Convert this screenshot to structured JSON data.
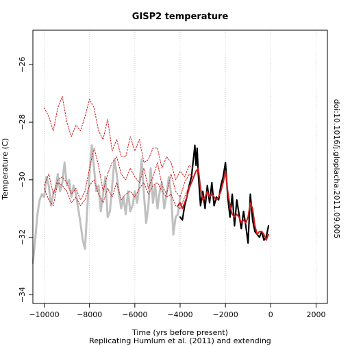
{
  "chart_data": {
    "type": "line",
    "title": "GISP2 temperature",
    "xlabel": "Time (yrs before present)",
    "ylabel": "Temperature (C)",
    "caption": "Replicating Humlum et al. (2011) and extending",
    "side_label": "doi:10.1016/j.gloplacha.2011.09.005",
    "xlim": [
      -10500,
      2500
    ],
    "ylim": [
      -34.3,
      -24.8
    ],
    "x_ticks": [
      -10000,
      -8000,
      -6000,
      -4000,
      -2000,
      0,
      2000
    ],
    "x_tick_labels": [
      "−10000",
      "−8000",
      "−6000",
      "−4000",
      "−2000",
      "0",
      "2000"
    ],
    "y_ticks": [
      -34,
      -32,
      -30,
      -28,
      -26
    ],
    "y_tick_labels": [
      "−34",
      "−32",
      "−30",
      "−28",
      "−26"
    ],
    "grid_x": true,
    "series": [
      {
        "color": "#c0c0c0",
        "style": "solid",
        "x": [
          -10500,
          -10400,
          -10300,
          -10200,
          -10100,
          -10000,
          -9900,
          -9800,
          -9700,
          -9600,
          -9500,
          -9400,
          -9300,
          -9200,
          -9100,
          -9000,
          -8900,
          -8800,
          -8700,
          -8600,
          -8500,
          -8400,
          -8300,
          -8200,
          -8100,
          -8000,
          -7900,
          -7800,
          -7700,
          -7600,
          -7500,
          -7400,
          -7300,
          -7200,
          -7100,
          -7000,
          -6900,
          -6800,
          -6700,
          -6600,
          -6500,
          -6400,
          -6300,
          -6200,
          -6100,
          -6000,
          -5900,
          -5800,
          -5700,
          -5600,
          -5500,
          -5400,
          -5300,
          -5200,
          -5100,
          -5000,
          -4900,
          -4800,
          -4700,
          -4600,
          -4500,
          -4400,
          -4300,
          -4200,
          -4100,
          -4000
        ],
        "y": [
          -32.9,
          -32.1,
          -31.2,
          -30.7,
          -30.5,
          -30.6,
          -29.9,
          -30.2,
          -30.9,
          -30.5,
          -30.3,
          -29.8,
          -30.4,
          -30.1,
          -29.4,
          -30.2,
          -30.0,
          -30.6,
          -30.2,
          -30.5,
          -31.0,
          -31.5,
          -32.1,
          -32.4,
          -31.0,
          -29.8,
          -28.8,
          -29.6,
          -30.4,
          -30.2,
          -31.1,
          -30.5,
          -29.9,
          -31.3,
          -31.1,
          -30.2,
          -29.3,
          -29.8,
          -30.5,
          -31.0,
          -30.6,
          -31.2,
          -30.4,
          -31.1,
          -30.9,
          -30.4,
          -30.8,
          -30.2,
          -29.3,
          -30.5,
          -31.5,
          -30.9,
          -29.6,
          -30.8,
          -30.2,
          -31.0,
          -30.4,
          -30.1,
          -31.0,
          -30.5,
          -29.9,
          -30.5,
          -31.9,
          -31.3,
          -31.2,
          -30.6
        ]
      },
      {
        "color": "#000000",
        "style": "solid",
        "x": [
          -4000,
          -3900,
          -3800,
          -3700,
          -3600,
          -3500,
          -3400,
          -3350,
          -3300,
          -3250,
          -3200,
          -3100,
          -3000,
          -2900,
          -2800,
          -2700,
          -2600,
          -2500,
          -2400,
          -2300,
          -2200,
          -2100,
          -2000,
          -1900,
          -1800,
          -1700,
          -1600,
          -1500,
          -1400,
          -1300,
          -1200,
          -1100,
          -1000,
          -900,
          -800,
          -700,
          -600,
          -500,
          -400,
          -300,
          -200,
          -100
        ],
        "y": [
          -31.3,
          -31.4,
          -30.9,
          -30.6,
          -30.2,
          -29.9,
          -29.2,
          -28.8,
          -29.5,
          -28.9,
          -29.8,
          -30.9,
          -30.4,
          -31.0,
          -30.2,
          -30.8,
          -30.1,
          -30.9,
          -30.6,
          -30.7,
          -30.2,
          -29.9,
          -29.4,
          -30.6,
          -31.3,
          -30.5,
          -31.6,
          -30.7,
          -31.2,
          -31.7,
          -31.1,
          -31.6,
          -32.2,
          -30.5,
          -31.4,
          -31.8,
          -31.9,
          -32.0,
          -31.8,
          -32.1,
          -32.0,
          -31.6
        ]
      },
      {
        "color": "#cc1f1f",
        "style": "solid",
        "x": [
          -4100,
          -4000,
          -3900,
          -3800,
          -3700,
          -3600,
          -3500,
          -3400,
          -3300,
          -3200,
          -3100,
          -3000,
          -2900,
          -2800,
          -2700,
          -2600,
          -2500,
          -2400,
          -2300,
          -2200,
          -2100,
          -2000,
          -1900,
          -1800,
          -1700,
          -1600,
          -1500,
          -1400,
          -1300,
          -1200,
          -1100,
          -1000,
          -900,
          -800,
          -700,
          -600,
          -500,
          -400,
          -300,
          -200,
          -100
        ],
        "y": [
          -30.9,
          -30.8,
          -31.0,
          -30.8,
          -30.6,
          -30.3,
          -30.1,
          -29.9,
          -29.7,
          -29.6,
          -30.3,
          -30.7,
          -30.6,
          -30.4,
          -30.6,
          -30.5,
          -30.6,
          -30.7,
          -30.6,
          -30.4,
          -30.1,
          -29.7,
          -30.4,
          -30.9,
          -31.2,
          -31.3,
          -31.2,
          -31.3,
          -31.5,
          -31.4,
          -31.5,
          -31.3,
          -30.8,
          -31.0,
          -31.6,
          -31.9,
          -31.8,
          -31.8,
          -31.9,
          -32.1,
          -31.9
        ]
      },
      {
        "color": "#cc1f1f",
        "style": "dotted",
        "x": [
          -10000,
          -9800,
          -9600,
          -9400,
          -9200,
          -9000,
          -8800,
          -8600,
          -8400,
          -8200,
          -8000,
          -7800,
          -7600,
          -7400,
          -7200,
          -7000,
          -6800,
          -6600,
          -6400,
          -6200,
          -6000,
          -5800,
          -5600,
          -5400,
          -5200,
          -5000,
          -4800,
          -4600,
          -4400,
          -4200,
          -4000,
          -3800,
          -3600,
          -3400
        ],
        "y": [
          -27.5,
          -27.8,
          -28.3,
          -27.5,
          -27.1,
          -28.0,
          -28.5,
          -28.1,
          -28.3,
          -27.8,
          -27.2,
          -27.5,
          -28.3,
          -28.6,
          -27.9,
          -29.0,
          -28.6,
          -29.2,
          -29.2,
          -28.5,
          -29.0,
          -28.6,
          -29.4,
          -29.3,
          -28.9,
          -28.9,
          -29.6,
          -29.2,
          -29.4,
          -30.0,
          -29.7,
          -29.9,
          -29.5,
          -29.6
        ]
      },
      {
        "color": "#cc1f1f",
        "style": "dotted",
        "x": [
          -10000,
          -9800,
          -9600,
          -9400,
          -9200,
          -9000,
          -8800,
          -8600,
          -8400,
          -8200,
          -8000,
          -7800,
          -7600,
          -7400,
          -7200,
          -7000,
          -6800,
          -6600,
          -6400,
          -6200,
          -6000,
          -5800,
          -5600,
          -5400,
          -5200,
          -5000,
          -4800,
          -4600,
          -4400,
          -4200,
          -4000,
          -3800,
          -3600,
          -3400
        ],
        "y": [
          -30.2,
          -29.8,
          -30.5,
          -30.0,
          -29.9,
          -30.1,
          -30.5,
          -30.3,
          -30.7,
          -30.4,
          -29.6,
          -28.9,
          -29.5,
          -30.4,
          -29.8,
          -29.4,
          -29.2,
          -29.8,
          -30.0,
          -29.6,
          -29.9,
          -30.1,
          -29.6,
          -30.3,
          -29.9,
          -29.4,
          -30.2,
          -30.5,
          -29.8,
          -30.4,
          -30.6,
          -30.1,
          -29.8,
          -29.9
        ]
      },
      {
        "color": "#cc1f1f",
        "style": "dotted",
        "x": [
          -10000,
          -9800,
          -9600,
          -9400,
          -9200,
          -9000,
          -8800,
          -8600,
          -8400,
          -8200,
          -8000,
          -7800,
          -7600,
          -7400,
          -7200,
          -7000,
          -6800,
          -6600,
          -6400,
          -6200,
          -6000,
          -5800,
          -5600,
          -5400,
          -5200,
          -5000,
          -4800,
          -4600,
          -4400,
          -4200,
          -4000,
          -3800,
          -3600,
          -3400
        ],
        "y": [
          -30.3,
          -30.7,
          -30.9,
          -30.1,
          -30.2,
          -30.4,
          -30.8,
          -30.6,
          -30.9,
          -30.7,
          -30.2,
          -30.0,
          -30.5,
          -30.8,
          -30.3,
          -30.6,
          -30.1,
          -30.7,
          -30.5,
          -30.4,
          -30.6,
          -30.3,
          -30.1,
          -30.5,
          -30.2,
          -30.1,
          -30.4,
          -30.6,
          -30.5,
          -30.9,
          -31.0,
          -30.6,
          -30.2,
          -30.0
        ]
      }
    ]
  }
}
